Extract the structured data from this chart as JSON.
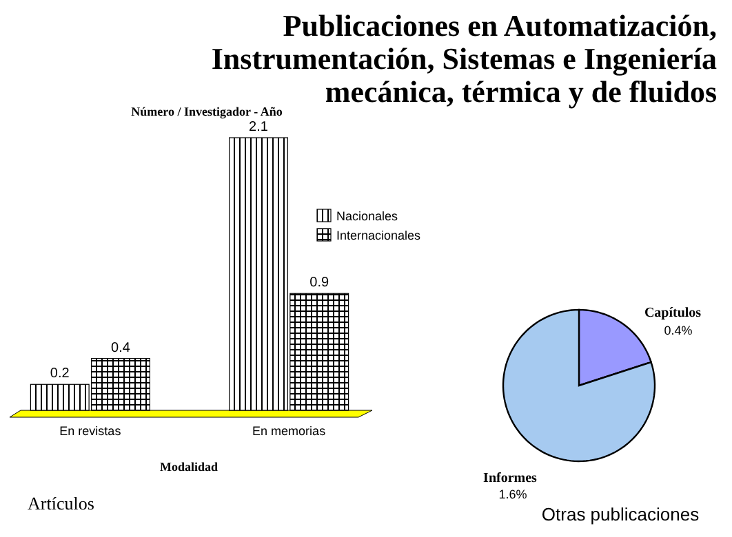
{
  "chart_data": [
    {
      "type": "bar",
      "title": "Publicaciones en Automatización, Instrumentación, Sistemas e Ingeniería mecánica, térmica y de fluidos",
      "subtitle": "Número / Investigador - Año",
      "xlabel": "Modalidad",
      "categories": [
        "En revistas",
        "En memorias"
      ],
      "series": [
        {
          "name": "Nacionales",
          "color": "#000000",
          "values": [
            0.2,
            2.1
          ]
        },
        {
          "name": "Internacionales",
          "color": "#000000",
          "values": [
            0.4,
            0.9
          ]
        }
      ],
      "data_labels": true,
      "legend": "top right",
      "annotations": [
        "Artículos"
      ]
    },
    {
      "type": "pie",
      "title": "Otras publicaciones",
      "categories": [
        "Capítulos",
        "Informes"
      ],
      "values": [
        0.4,
        1.6
      ],
      "colors": [
        "#9999ff",
        "#a6caf0"
      ],
      "value_labels": [
        "0.4%",
        "1.6%"
      ]
    }
  ]
}
